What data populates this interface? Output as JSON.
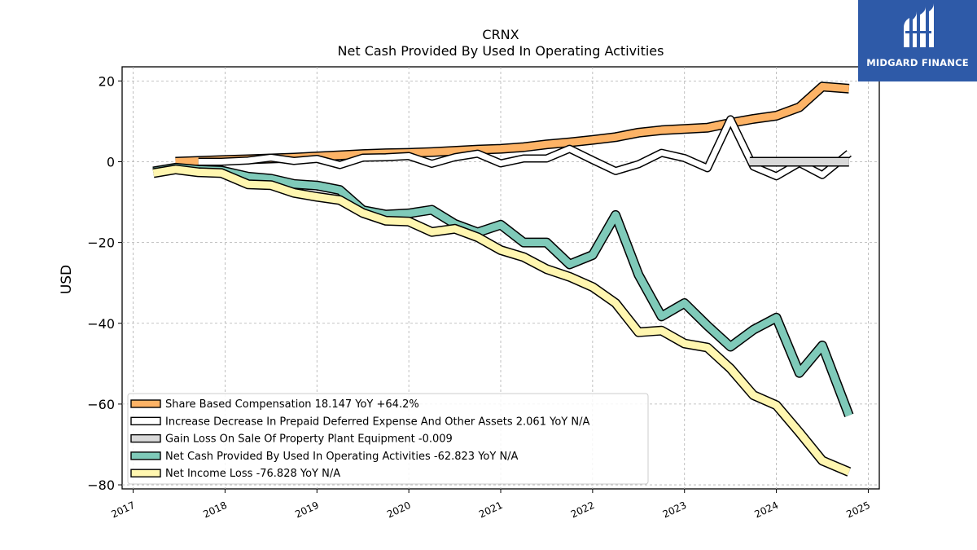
{
  "brand": {
    "name": "MIDGARD FINANCE",
    "color": "#2e5aa8"
  },
  "chart_data": {
    "type": "line",
    "title": "CRNX",
    "subtitle": "Net Cash Provided By Used In Operating Activities",
    "xlabel": "",
    "ylabel": "USD",
    "xlim": [
      2016.88,
      2025.12
    ],
    "ylim": [
      -81,
      23.5
    ],
    "x_ticks": [
      "2017",
      "2018",
      "2019",
      "2020",
      "2021",
      "2022",
      "2023",
      "2024",
      "2025"
    ],
    "y_ticks": [
      20,
      0,
      -20,
      -40,
      -60,
      -80
    ],
    "y_tick_labels": [
      "20",
      "0",
      "−20",
      "−40",
      "−60",
      "−80"
    ],
    "grid": true,
    "legend_position": "bottom-left",
    "series": [
      {
        "name": "Share Based Compensation",
        "legend": "Share Based Compensation  18.147 YoY +64.2%",
        "color": "#fdb366",
        "width": 9,
        "x": [
          2017.46,
          2017.71,
          2017.96,
          2018.25,
          2018.5,
          2018.75,
          2019.0,
          2019.25,
          2019.5,
          2019.75,
          2020.0,
          2020.25,
          2020.5,
          2020.75,
          2021.0,
          2021.25,
          2021.5,
          2021.75,
          2022.0,
          2022.25,
          2022.5,
          2022.75,
          2023.0,
          2023.25,
          2023.5,
          2023.75,
          2024.0,
          2024.25,
          2024.5,
          2024.79
        ],
        "y": [
          0.0,
          0.2,
          0.4,
          0.6,
          0.8,
          1.0,
          1.3,
          1.6,
          1.9,
          2.1,
          2.2,
          2.4,
          2.7,
          3.0,
          3.2,
          3.6,
          4.3,
          4.8,
          5.4,
          6.1,
          7.2,
          7.8,
          8.1,
          8.4,
          9.6,
          10.6,
          11.4,
          13.5,
          18.6,
          18.1
        ]
      },
      {
        "name": "Increase Decrease In Prepaid Deferred Expense And Other Assets",
        "legend": "Increase Decrease In Prepaid Deferred Expense And Other Assets  2.061 YoY N/A",
        "color": "#ffffff",
        "width": 7,
        "x": [
          2017.71,
          2017.96,
          2018.25,
          2018.5,
          2018.75,
          2019.0,
          2019.25,
          2019.5,
          2019.75,
          2020.0,
          2020.25,
          2020.5,
          2020.75,
          2021.0,
          2021.25,
          2021.5,
          2021.75,
          2022.0,
          2022.25,
          2022.5,
          2022.75,
          2023.0,
          2023.25,
          2023.5,
          2023.75,
          2024.0,
          2024.25,
          2024.5,
          2024.79
        ],
        "y": [
          0.0,
          0.0,
          0.3,
          1.0,
          0.2,
          0.7,
          -0.8,
          1.0,
          1.1,
          1.4,
          -0.5,
          1.1,
          2.0,
          -0.4,
          0.8,
          0.8,
          3.2,
          0.4,
          -2.3,
          -0.6,
          2.2,
          0.9,
          -1.6,
          10.5,
          -1.2,
          -3.6,
          -0.3,
          -3.3,
          2.1
        ]
      },
      {
        "name": "Gain Loss On Sale Of Property Plant Equipment",
        "legend": "Gain Loss On Sale Of Property Plant Equipment  -0.009",
        "color": "#d9d9d9",
        "width": 9,
        "x": [
          2023.71,
          2024.0,
          2024.25,
          2024.5,
          2024.79
        ],
        "y": [
          0.0,
          0.0,
          0.0,
          0.0,
          0.0
        ]
      },
      {
        "name": "Net Cash Provided By Used In Operating Activities",
        "legend": "Net Cash Provided By Used In Operating Activities  -62.823 YoY N/A",
        "color": "#7fcab9",
        "width": 9,
        "x": [
          2017.22,
          2017.46,
          2017.71,
          2017.96,
          2018.25,
          2018.5,
          2018.75,
          2019.0,
          2019.25,
          2019.5,
          2019.75,
          2020.0,
          2020.25,
          2020.5,
          2020.75,
          2021.0,
          2021.25,
          2021.5,
          2021.75,
          2022.0,
          2022.25,
          2022.5,
          2022.75,
          2023.0,
          2023.25,
          2023.5,
          2023.75,
          2024.0,
          2024.25,
          2024.5,
          2024.79
        ],
        "y": [
          -2.4,
          -1.5,
          -2.0,
          -2.2,
          -3.7,
          -4.2,
          -5.5,
          -5.9,
          -7.0,
          -12.0,
          -13.1,
          -12.8,
          -11.9,
          -15.4,
          -17.5,
          -15.6,
          -20.0,
          -20.0,
          -25.4,
          -23.1,
          -13.2,
          -28.0,
          -38.3,
          -35.0,
          -40.6,
          -45.8,
          -41.6,
          -38.6,
          -52.3,
          -45.5,
          -62.8
        ]
      },
      {
        "name": "Net Income Loss",
        "legend": "Net Income Loss  -76.828 YoY N/A",
        "color": "#fff6b0",
        "width": 9,
        "x": [
          2017.22,
          2017.46,
          2017.71,
          2017.96,
          2018.25,
          2018.5,
          2018.75,
          2019.0,
          2019.25,
          2019.5,
          2019.75,
          2020.0,
          2020.25,
          2020.5,
          2020.75,
          2021.0,
          2021.25,
          2021.5,
          2021.75,
          2022.0,
          2022.25,
          2022.5,
          2022.75,
          2023.0,
          2023.25,
          2023.5,
          2023.75,
          2024.0,
          2024.25,
          2024.5,
          2024.79
        ],
        "y": [
          -2.8,
          -1.9,
          -2.6,
          -2.8,
          -5.6,
          -5.8,
          -7.7,
          -8.7,
          -9.5,
          -12.7,
          -14.6,
          -14.8,
          -17.4,
          -16.6,
          -18.7,
          -21.9,
          -23.6,
          -26.6,
          -28.5,
          -31.0,
          -35.0,
          -42.2,
          -41.8,
          -45.0,
          -46.0,
          -51.2,
          -57.8,
          -60.3,
          -67.0,
          -74.0,
          -76.8
        ]
      }
    ]
  }
}
